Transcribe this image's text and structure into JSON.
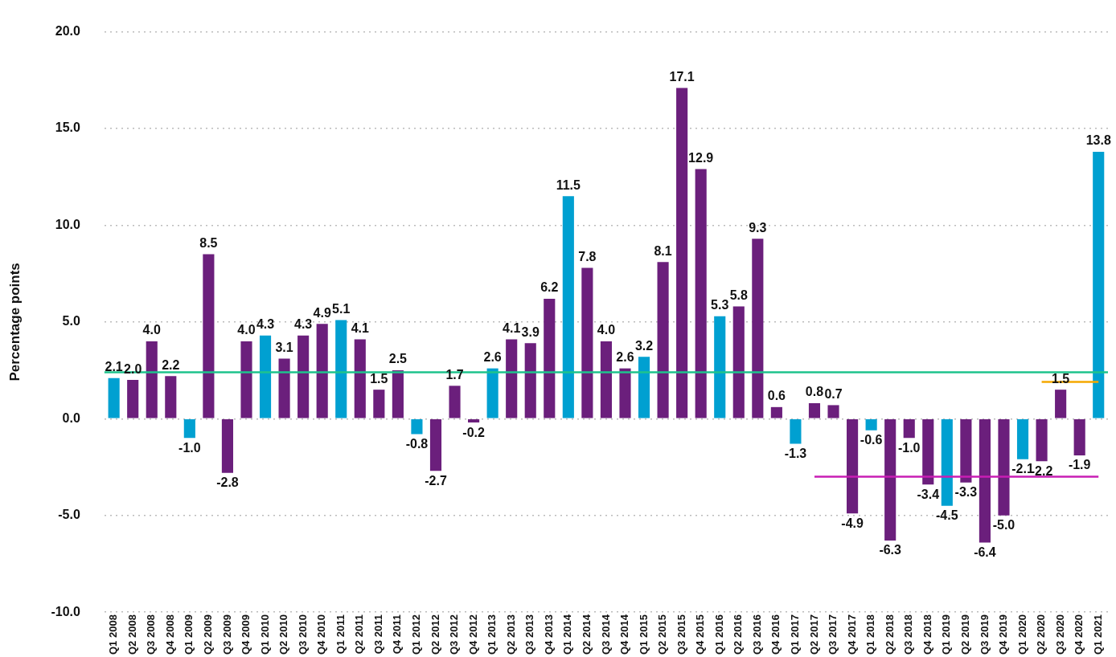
{
  "chart_data": {
    "type": "bar",
    "ylabel": "Percentage points",
    "categories": [
      "Q1 2008",
      "Q2 2008",
      "Q3 2008",
      "Q4 2008",
      "Q1 2009",
      "Q2 2009",
      "Q3 2009",
      "Q4 2009",
      "Q1 2010",
      "Q2 2010",
      "Q3 2010",
      "Q4 2010",
      "Q1 2011",
      "Q2 2011",
      "Q3 2011",
      "Q4 2011",
      "Q1 2012",
      "Q2 2012",
      "Q3 2012",
      "Q4 2012",
      "Q1 2013",
      "Q2 2013",
      "Q3 2013",
      "Q4 2013",
      "Q1 2014",
      "Q2 2014",
      "Q3 2014",
      "Q4 2014",
      "Q1 2015",
      "Q2 2015",
      "Q3 2015",
      "Q4 2015",
      "Q1 2016",
      "Q2 2016",
      "Q3 2016",
      "Q4 2016",
      "Q1 2017",
      "Q2 2017",
      "Q3 2017",
      "Q4 2017",
      "Q1 2018",
      "Q2 2018",
      "Q3 2018",
      "Q4 2018",
      "Q1 2019",
      "Q2 2019",
      "Q3 2019",
      "Q4 2019",
      "Q1 2020",
      "Q2 2020",
      "Q3 2020",
      "Q4 2020",
      "Q1 2021"
    ],
    "series": [
      {
        "value_labels": [
          "2.1",
          "2.0",
          "4.0",
          "2.2",
          "-1.0",
          "8.5",
          "-2.8",
          "4.0",
          "4.3",
          "3.1",
          "4.3",
          "4.9",
          "5.1",
          "4.1",
          "1.5",
          "2.5",
          "-0.8",
          "-2.7",
          "1.7",
          "-0.2",
          "2.6",
          "4.1",
          "3.9",
          "6.2",
          "11.5",
          "7.8",
          "4.0",
          "2.6",
          "3.2",
          "8.1",
          "17.1",
          "12.9",
          "5.3",
          "5.8",
          "9.3",
          "0.6",
          "-1.3",
          "0.8",
          "0.7",
          "-4.9",
          "-0.6",
          "-6.3",
          "-1.0",
          "-3.4",
          "-4.5",
          "-3.3",
          "-6.4",
          "-5.0",
          "-2.1",
          "-2.2",
          "1.5",
          "-1.9",
          "13.8"
        ],
        "values": [
          2.1,
          2.0,
          4.0,
          2.2,
          -1.0,
          8.5,
          -2.8,
          4.0,
          4.3,
          3.1,
          4.3,
          4.9,
          5.1,
          4.1,
          1.5,
          2.5,
          -0.8,
          -2.7,
          1.7,
          -0.2,
          2.6,
          4.1,
          3.9,
          6.2,
          11.5,
          7.8,
          4.0,
          2.6,
          3.2,
          8.1,
          17.1,
          12.9,
          5.3,
          5.8,
          9.3,
          0.6,
          -1.3,
          0.8,
          0.7,
          -4.9,
          -0.6,
          -6.3,
          -1.0,
          -3.4,
          -4.5,
          -3.3,
          -6.4,
          -5.0,
          -2.1,
          -2.2,
          1.5,
          -1.9,
          13.8
        ],
        "colors": [
          "#00a0d1",
          "#6b1f7c",
          "#6b1f7c",
          "#6b1f7c",
          "#00a0d1",
          "#6b1f7c",
          "#6b1f7c",
          "#6b1f7c",
          "#00a0d1",
          "#6b1f7c",
          "#6b1f7c",
          "#6b1f7c",
          "#00a0d1",
          "#6b1f7c",
          "#6b1f7c",
          "#6b1f7c",
          "#00a0d1",
          "#6b1f7c",
          "#6b1f7c",
          "#6b1f7c",
          "#00a0d1",
          "#6b1f7c",
          "#6b1f7c",
          "#6b1f7c",
          "#00a0d1",
          "#6b1f7c",
          "#6b1f7c",
          "#6b1f7c",
          "#00a0d1",
          "#6b1f7c",
          "#6b1f7c",
          "#6b1f7c",
          "#00a0d1",
          "#6b1f7c",
          "#6b1f7c",
          "#6b1f7c",
          "#00a0d1",
          "#6b1f7c",
          "#6b1f7c",
          "#6b1f7c",
          "#00a0d1",
          "#6b1f7c",
          "#6b1f7c",
          "#6b1f7c",
          "#00a0d1",
          "#6b1f7c",
          "#6b1f7c",
          "#6b1f7c",
          "#00a0d1",
          "#6b1f7c",
          "#6b1f7c",
          "#6b1f7c",
          "#00a0d1"
        ]
      },
      {
        "type": "line",
        "color": "#c81eb4",
        "values": [
          null,
          null,
          null,
          null,
          null,
          null,
          null,
          null,
          null,
          null,
          null,
          null,
          null,
          null,
          null,
          null,
          null,
          null,
          null,
          null,
          null,
          null,
          null,
          null,
          null,
          null,
          null,
          null,
          null,
          null,
          null,
          null,
          null,
          null,
          null,
          null,
          null,
          -3.0,
          -3.0,
          -3.0,
          -3.0,
          -3.0,
          -3.0,
          -3.0,
          -3.0,
          -3.0,
          -3.0,
          -3.0,
          -3.0,
          -3.0,
          -3.0,
          -3.0,
          -3.0
        ]
      },
      {
        "type": "line",
        "color": "#f5a800",
        "values": [
          null,
          null,
          null,
          null,
          null,
          null,
          null,
          null,
          null,
          null,
          null,
          null,
          null,
          null,
          null,
          null,
          null,
          null,
          null,
          null,
          null,
          null,
          null,
          null,
          null,
          null,
          null,
          null,
          null,
          null,
          null,
          null,
          null,
          null,
          null,
          null,
          null,
          null,
          null,
          null,
          null,
          null,
          null,
          null,
          null,
          null,
          null,
          null,
          null,
          1.9,
          1.9,
          1.9,
          1.9
        ]
      }
    ],
    "ref_lines": [
      {
        "axis": "y",
        "value": 2.4,
        "color": "#1ec38c"
      }
    ],
    "ylim": [
      -10,
      20
    ],
    "yticks": [
      {
        "value": -10,
        "label": "-10.0"
      },
      {
        "value": -5,
        "label": "-5.0"
      },
      {
        "value": 0,
        "label": "0.0"
      },
      {
        "value": 5,
        "label": "5.0"
      },
      {
        "value": 10,
        "label": "10.0"
      },
      {
        "value": 15,
        "label": "15.0"
      },
      {
        "value": 20,
        "label": "20.0"
      }
    ],
    "grid": "y",
    "legend": false,
    "marker": "none"
  }
}
